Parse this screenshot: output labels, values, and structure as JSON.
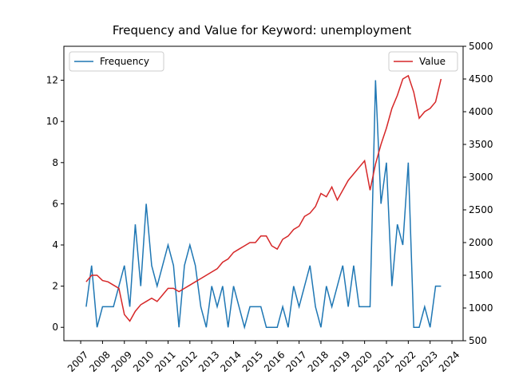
{
  "chart_data": {
    "type": "line",
    "title": "Frequency and Value for Keyword: unemployment",
    "x": [
      2007.25,
      2007.5,
      2007.75,
      2008,
      2008.25,
      2008.5,
      2008.75,
      2009,
      2009.25,
      2009.5,
      2009.75,
      2010,
      2010.25,
      2010.5,
      2010.75,
      2011,
      2011.25,
      2011.5,
      2011.75,
      2012,
      2012.25,
      2012.5,
      2012.75,
      2013,
      2013.25,
      2013.5,
      2013.75,
      2014,
      2014.25,
      2014.5,
      2014.75,
      2015,
      2015.25,
      2015.5,
      2015.75,
      2016,
      2016.25,
      2016.5,
      2016.75,
      2017,
      2017.25,
      2017.5,
      2017.75,
      2018,
      2018.25,
      2018.5,
      2018.75,
      2019,
      2019.25,
      2019.5,
      2019.75,
      2020,
      2020.25,
      2020.5,
      2020.75,
      2021,
      2021.25,
      2021.5,
      2021.75,
      2022,
      2022.25,
      2022.5,
      2022.75,
      2023,
      2023.25,
      2023.5
    ],
    "series": [
      {
        "name": "Frequency",
        "color": "#1f77b4",
        "axis": "y",
        "values": [
          1,
          3,
          0,
          1,
          1,
          1,
          2,
          3,
          1,
          5,
          2,
          6,
          3,
          2,
          3,
          4,
          3,
          0,
          3,
          4,
          3,
          1,
          0,
          2,
          1,
          2,
          0,
          2,
          1,
          0,
          1,
          1,
          1,
          0,
          0,
          0,
          1,
          0,
          2,
          1,
          2,
          3,
          1,
          0,
          2,
          1,
          2,
          3,
          1,
          3,
          1,
          1,
          1,
          12,
          6,
          8,
          2,
          5,
          4,
          8,
          0,
          0,
          1,
          0,
          2,
          2
        ]
      },
      {
        "name": "Value",
        "color": "#d62728",
        "axis": "y2",
        "values": [
          1400,
          1500,
          1500,
          1420,
          1400,
          1350,
          1300,
          900,
          800,
          950,
          1050,
          1100,
          1150,
          1100,
          1200,
          1300,
          1300,
          1250,
          1300,
          1350,
          1400,
          1450,
          1500,
          1550,
          1600,
          1700,
          1750,
          1850,
          1900,
          1950,
          2000,
          2000,
          2100,
          2100,
          1950,
          1900,
          2050,
          2100,
          2200,
          2250,
          2400,
          2450,
          2550,
          2750,
          2700,
          2850,
          2650,
          2800,
          2950,
          3050,
          3150,
          3250,
          2800,
          3200,
          3500,
          3750,
          4050,
          4250,
          4500,
          4550,
          4300,
          3900,
          4000,
          4050,
          4150,
          4500
        ]
      }
    ],
    "xlim": [
      2006.23,
      2024.51
    ],
    "xticks": [
      2007,
      2008,
      2009,
      2010,
      2011,
      2012,
      2013,
      2014,
      2015,
      2016,
      2017,
      2018,
      2019,
      2020,
      2021,
      2022,
      2023,
      2024
    ],
    "ylim": [
      -0.65,
      13.65
    ],
    "yticks": [
      0,
      2,
      4,
      6,
      8,
      10,
      12
    ],
    "y2lim": [
      500,
      5000
    ],
    "y2ticks": [
      500,
      1000,
      1500,
      2000,
      2500,
      3000,
      3500,
      4000,
      4500,
      5000
    ],
    "legend": [
      "upper left",
      "upper right"
    ]
  }
}
